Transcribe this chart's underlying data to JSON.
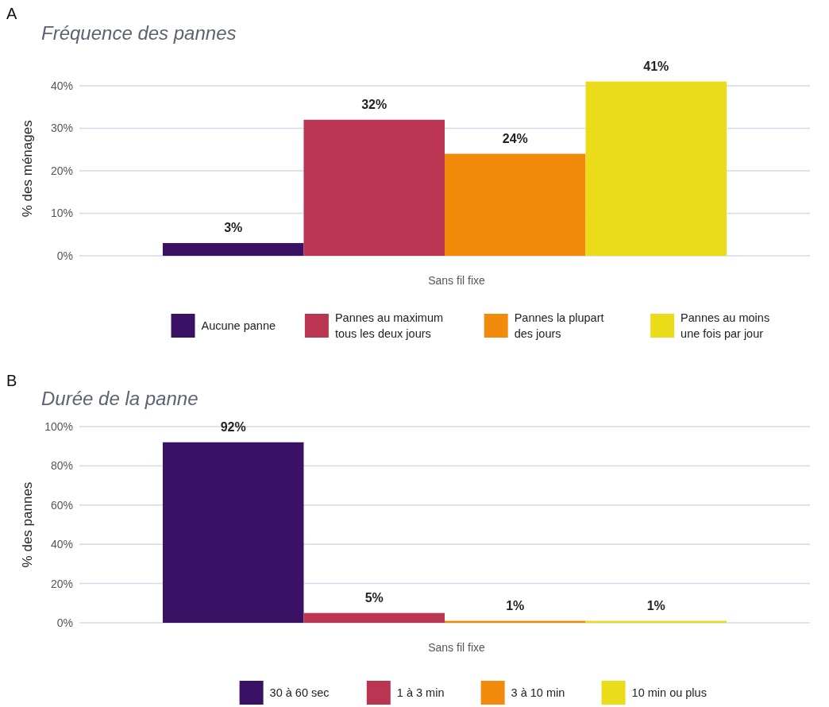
{
  "chart_data": [
    {
      "type": "bar",
      "title": "Fréquence des pannes",
      "ylabel": "% des ménages",
      "annotations": [
        "A"
      ],
      "categories": [
        "Sans fil fixe"
      ],
      "ylim": [
        0,
        41
      ],
      "yticks": [
        {
          "value": 0,
          "label": "0%"
        },
        {
          "value": 10,
          "label": "10%"
        },
        {
          "value": 20,
          "label": "20%"
        },
        {
          "value": 30,
          "label": "30%"
        },
        {
          "value": 40,
          "label": "40%"
        }
      ],
      "grid": "y",
      "legend": "bottom",
      "data_labels": true,
      "series": [
        {
          "name": "Aucune panne",
          "color": "#3b1166",
          "values": [
            3
          ],
          "value_labels": [
            "3%"
          ]
        },
        {
          "name": "Pannes au maximum tous les deux jours",
          "color": "#b93551",
          "values": [
            32
          ],
          "value_labels": [
            "32%"
          ]
        },
        {
          "name": "Pannes la plupart des jours",
          "color": "#f28b0c",
          "values": [
            24
          ],
          "value_labels": [
            "24%"
          ]
        },
        {
          "name": "Pannes au moins une fois par jour",
          "color": "#ebdc1a",
          "values": [
            41
          ],
          "value_labels": [
            "41%"
          ]
        }
      ]
    },
    {
      "type": "bar",
      "title": "Durée de la panne",
      "ylabel": "% des pannes",
      "annotations": [
        "B"
      ],
      "categories": [
        "Sans fil fixe"
      ],
      "ylim": [
        0,
        100
      ],
      "yticks": [
        {
          "value": 0,
          "label": "0%"
        },
        {
          "value": 20,
          "label": "20%"
        },
        {
          "value": 40,
          "label": "40%"
        },
        {
          "value": 60,
          "label": "60%"
        },
        {
          "value": 80,
          "label": "80%"
        },
        {
          "value": 100,
          "label": "100%"
        }
      ],
      "grid": "y",
      "legend": "bottom",
      "data_labels": true,
      "series": [
        {
          "name": "30 à 60 sec",
          "color": "#3b1166",
          "values": [
            92
          ],
          "value_labels": [
            "92%"
          ]
        },
        {
          "name": "1 à 3 min",
          "color": "#b93551",
          "values": [
            5
          ],
          "value_labels": [
            "5%"
          ]
        },
        {
          "name": "3 à 10 min",
          "color": "#f28b0c",
          "values": [
            1
          ],
          "value_labels": [
            "1%"
          ]
        },
        {
          "name": "10 min ou plus",
          "color": "#ebdc1a",
          "values": [
            1
          ],
          "value_labels": [
            "1%"
          ]
        }
      ]
    }
  ]
}
